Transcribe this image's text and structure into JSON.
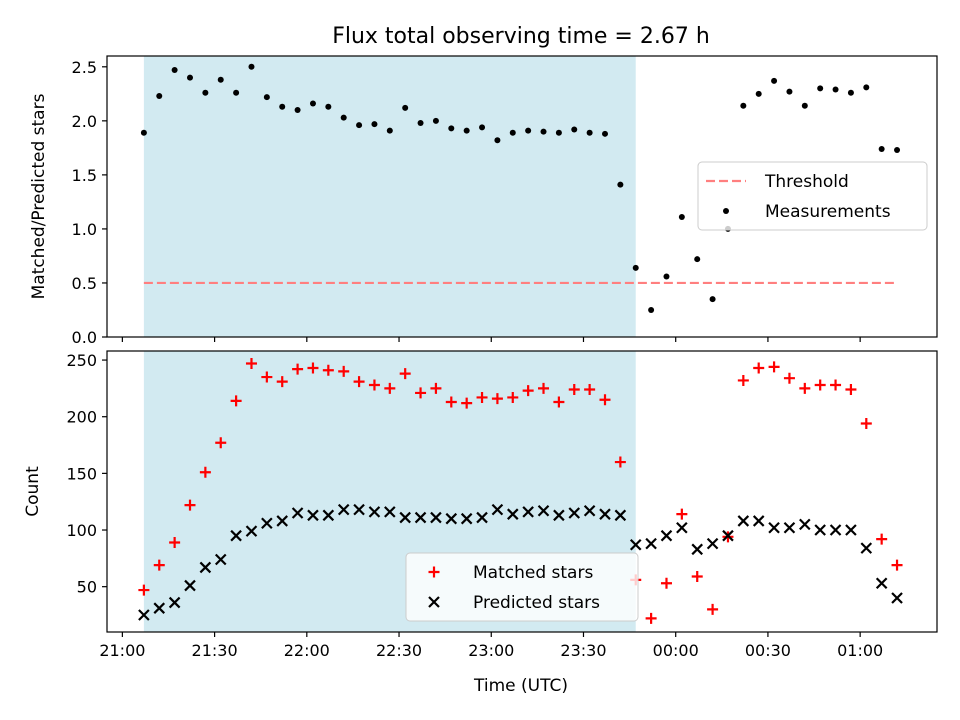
{
  "chart_data": {
    "type": "scatter",
    "title": "Flux total observing time = 2.67 h",
    "xlabel": "Time (UTC)",
    "x_tick_labels": [
      "21:00",
      "21:30",
      "22:00",
      "22:30",
      "23:00",
      "23:30",
      "00:00",
      "00:30",
      "01:00"
    ],
    "x_range": [
      "20:55",
      "01:25"
    ],
    "shaded_interval": {
      "start": "21:07",
      "end": "23:47",
      "color": "#add8e6"
    },
    "panels": [
      {
        "id": "ratio",
        "ylabel": "Matched/Predicted stars",
        "ylim": [
          0,
          2.6
        ],
        "y_ticks": [
          "0.0",
          "0.5",
          "1.0",
          "1.5",
          "2.0",
          "2.5"
        ],
        "y_tick_values": [
          0,
          0.5,
          1.0,
          1.5,
          2.0,
          2.5
        ],
        "legend": {
          "placement": "center-right",
          "entries": [
            "Threshold",
            "Measurements"
          ]
        },
        "threshold": {
          "name": "Threshold",
          "value": 0.5,
          "x_start": "21:07",
          "x_end": "01:12",
          "color": "#ff7f7f"
        },
        "series": [
          {
            "name": "Measurements",
            "marker": "dot",
            "color": "#000000",
            "points": [
              [
                "21:07",
                1.89
              ],
              [
                "21:12",
                2.23
              ],
              [
                "21:17",
                2.47
              ],
              [
                "21:22",
                2.4
              ],
              [
                "21:27",
                2.26
              ],
              [
                "21:32",
                2.38
              ],
              [
                "21:37",
                2.26
              ],
              [
                "21:42",
                2.5
              ],
              [
                "21:47",
                2.22
              ],
              [
                "21:52",
                2.13
              ],
              [
                "21:57",
                2.1
              ],
              [
                "22:02",
                2.16
              ],
              [
                "22:07",
                2.13
              ],
              [
                "22:12",
                2.03
              ],
              [
                "22:17",
                1.96
              ],
              [
                "22:22",
                1.97
              ],
              [
                "22:27",
                1.91
              ],
              [
                "22:32",
                2.12
              ],
              [
                "22:37",
                1.98
              ],
              [
                "22:42",
                2.0
              ],
              [
                "22:47",
                1.93
              ],
              [
                "22:52",
                1.91
              ],
              [
                "22:57",
                1.94
              ],
              [
                "23:02",
                1.82
              ],
              [
                "23:07",
                1.89
              ],
              [
                "23:12",
                1.91
              ],
              [
                "23:17",
                1.9
              ],
              [
                "23:22",
                1.89
              ],
              [
                "23:27",
                1.92
              ],
              [
                "23:32",
                1.89
              ],
              [
                "23:37",
                1.88
              ],
              [
                "23:42",
                1.41
              ],
              [
                "23:47",
                0.64
              ],
              [
                "23:52",
                0.25
              ],
              [
                "23:57",
                0.56
              ],
              [
                "00:02",
                1.11
              ],
              [
                "00:07",
                0.72
              ],
              [
                "00:12",
                0.35
              ],
              [
                "00:17",
                1.0
              ],
              [
                "00:22",
                2.14
              ],
              [
                "00:27",
                2.25
              ],
              [
                "00:32",
                2.37
              ],
              [
                "00:37",
                2.27
              ],
              [
                "00:42",
                2.14
              ],
              [
                "00:47",
                2.3
              ],
              [
                "00:52",
                2.29
              ],
              [
                "00:57",
                2.26
              ],
              [
                "01:02",
                2.31
              ],
              [
                "01:07",
                1.74
              ],
              [
                "01:12",
                1.73
              ]
            ]
          }
        ]
      },
      {
        "id": "count",
        "ylabel": "Count",
        "ylim": [
          10,
          258
        ],
        "y_ticks": [
          "50",
          "100",
          "150",
          "200",
          "250"
        ],
        "y_tick_values": [
          50,
          100,
          150,
          200,
          250
        ],
        "legend": {
          "placement": "lower-center",
          "entries": [
            "Matched stars",
            "Predicted stars"
          ]
        },
        "series": [
          {
            "name": "Matched stars",
            "marker": "plus",
            "color": "#ff0000",
            "points": [
              [
                "21:07",
                47
              ],
              [
                "21:12",
                69
              ],
              [
                "21:17",
                89
              ],
              [
                "21:22",
                122
              ],
              [
                "21:27",
                151
              ],
              [
                "21:32",
                177
              ],
              [
                "21:37",
                214
              ],
              [
                "21:42",
                247
              ],
              [
                "21:47",
                235
              ],
              [
                "21:52",
                231
              ],
              [
                "21:57",
                242
              ],
              [
                "22:02",
                243
              ],
              [
                "22:07",
                241
              ],
              [
                "22:12",
                240
              ],
              [
                "22:17",
                231
              ],
              [
                "22:22",
                228
              ],
              [
                "22:27",
                225
              ],
              [
                "22:32",
                238
              ],
              [
                "22:37",
                221
              ],
              [
                "22:42",
                225
              ],
              [
                "22:47",
                213
              ],
              [
                "22:52",
                212
              ],
              [
                "22:57",
                217
              ],
              [
                "23:02",
                216
              ],
              [
                "23:07",
                217
              ],
              [
                "23:12",
                223
              ],
              [
                "23:17",
                225
              ],
              [
                "23:22",
                213
              ],
              [
                "23:27",
                224
              ],
              [
                "23:32",
                224
              ],
              [
                "23:37",
                215
              ],
              [
                "23:42",
                160
              ],
              [
                "23:47",
                56
              ],
              [
                "23:52",
                22
              ],
              [
                "23:57",
                53
              ],
              [
                "00:02",
                114
              ],
              [
                "00:07",
                59
              ],
              [
                "00:12",
                30
              ],
              [
                "00:17",
                94
              ],
              [
                "00:22",
                232
              ],
              [
                "00:27",
                243
              ],
              [
                "00:32",
                244
              ],
              [
                "00:37",
                234
              ],
              [
                "00:42",
                225
              ],
              [
                "00:47",
                228
              ],
              [
                "00:52",
                228
              ],
              [
                "00:57",
                224
              ],
              [
                "01:02",
                194
              ],
              [
                "01:07",
                92
              ],
              [
                "01:12",
                69
              ]
            ]
          },
          {
            "name": "Predicted stars",
            "marker": "x",
            "color": "#000000",
            "points": [
              [
                "21:07",
                25
              ],
              [
                "21:12",
                31
              ],
              [
                "21:17",
                36
              ],
              [
                "21:22",
                51
              ],
              [
                "21:27",
                67
              ],
              [
                "21:32",
                74
              ],
              [
                "21:37",
                95
              ],
              [
                "21:42",
                99
              ],
              [
                "21:47",
                106
              ],
              [
                "21:52",
                108
              ],
              [
                "21:57",
                115
              ],
              [
                "22:02",
                113
              ],
              [
                "22:07",
                113
              ],
              [
                "22:12",
                118
              ],
              [
                "22:17",
                118
              ],
              [
                "22:22",
                116
              ],
              [
                "22:27",
                116
              ],
              [
                "22:32",
                111
              ],
              [
                "22:37",
                111
              ],
              [
                "22:42",
                111
              ],
              [
                "22:47",
                110
              ],
              [
                "22:52",
                110
              ],
              [
                "22:57",
                111
              ],
              [
                "23:02",
                118
              ],
              [
                "23:07",
                114
              ],
              [
                "23:12",
                116
              ],
              [
                "23:17",
                117
              ],
              [
                "23:22",
                113
              ],
              [
                "23:27",
                115
              ],
              [
                "23:32",
                117
              ],
              [
                "23:37",
                114
              ],
              [
                "23:42",
                113
              ],
              [
                "23:47",
                87
              ],
              [
                "23:52",
                88
              ],
              [
                "23:57",
                95
              ],
              [
                "00:02",
                102
              ],
              [
                "00:07",
                83
              ],
              [
                "00:12",
                88
              ],
              [
                "00:17",
                95
              ],
              [
                "00:22",
                108
              ],
              [
                "00:27",
                108
              ],
              [
                "00:32",
                102
              ],
              [
                "00:37",
                102
              ],
              [
                "00:42",
                105
              ],
              [
                "00:47",
                100
              ],
              [
                "00:52",
                100
              ],
              [
                "00:57",
                100
              ],
              [
                "01:02",
                84
              ],
              [
                "01:07",
                53
              ],
              [
                "01:12",
                40
              ]
            ]
          }
        ]
      }
    ]
  }
}
